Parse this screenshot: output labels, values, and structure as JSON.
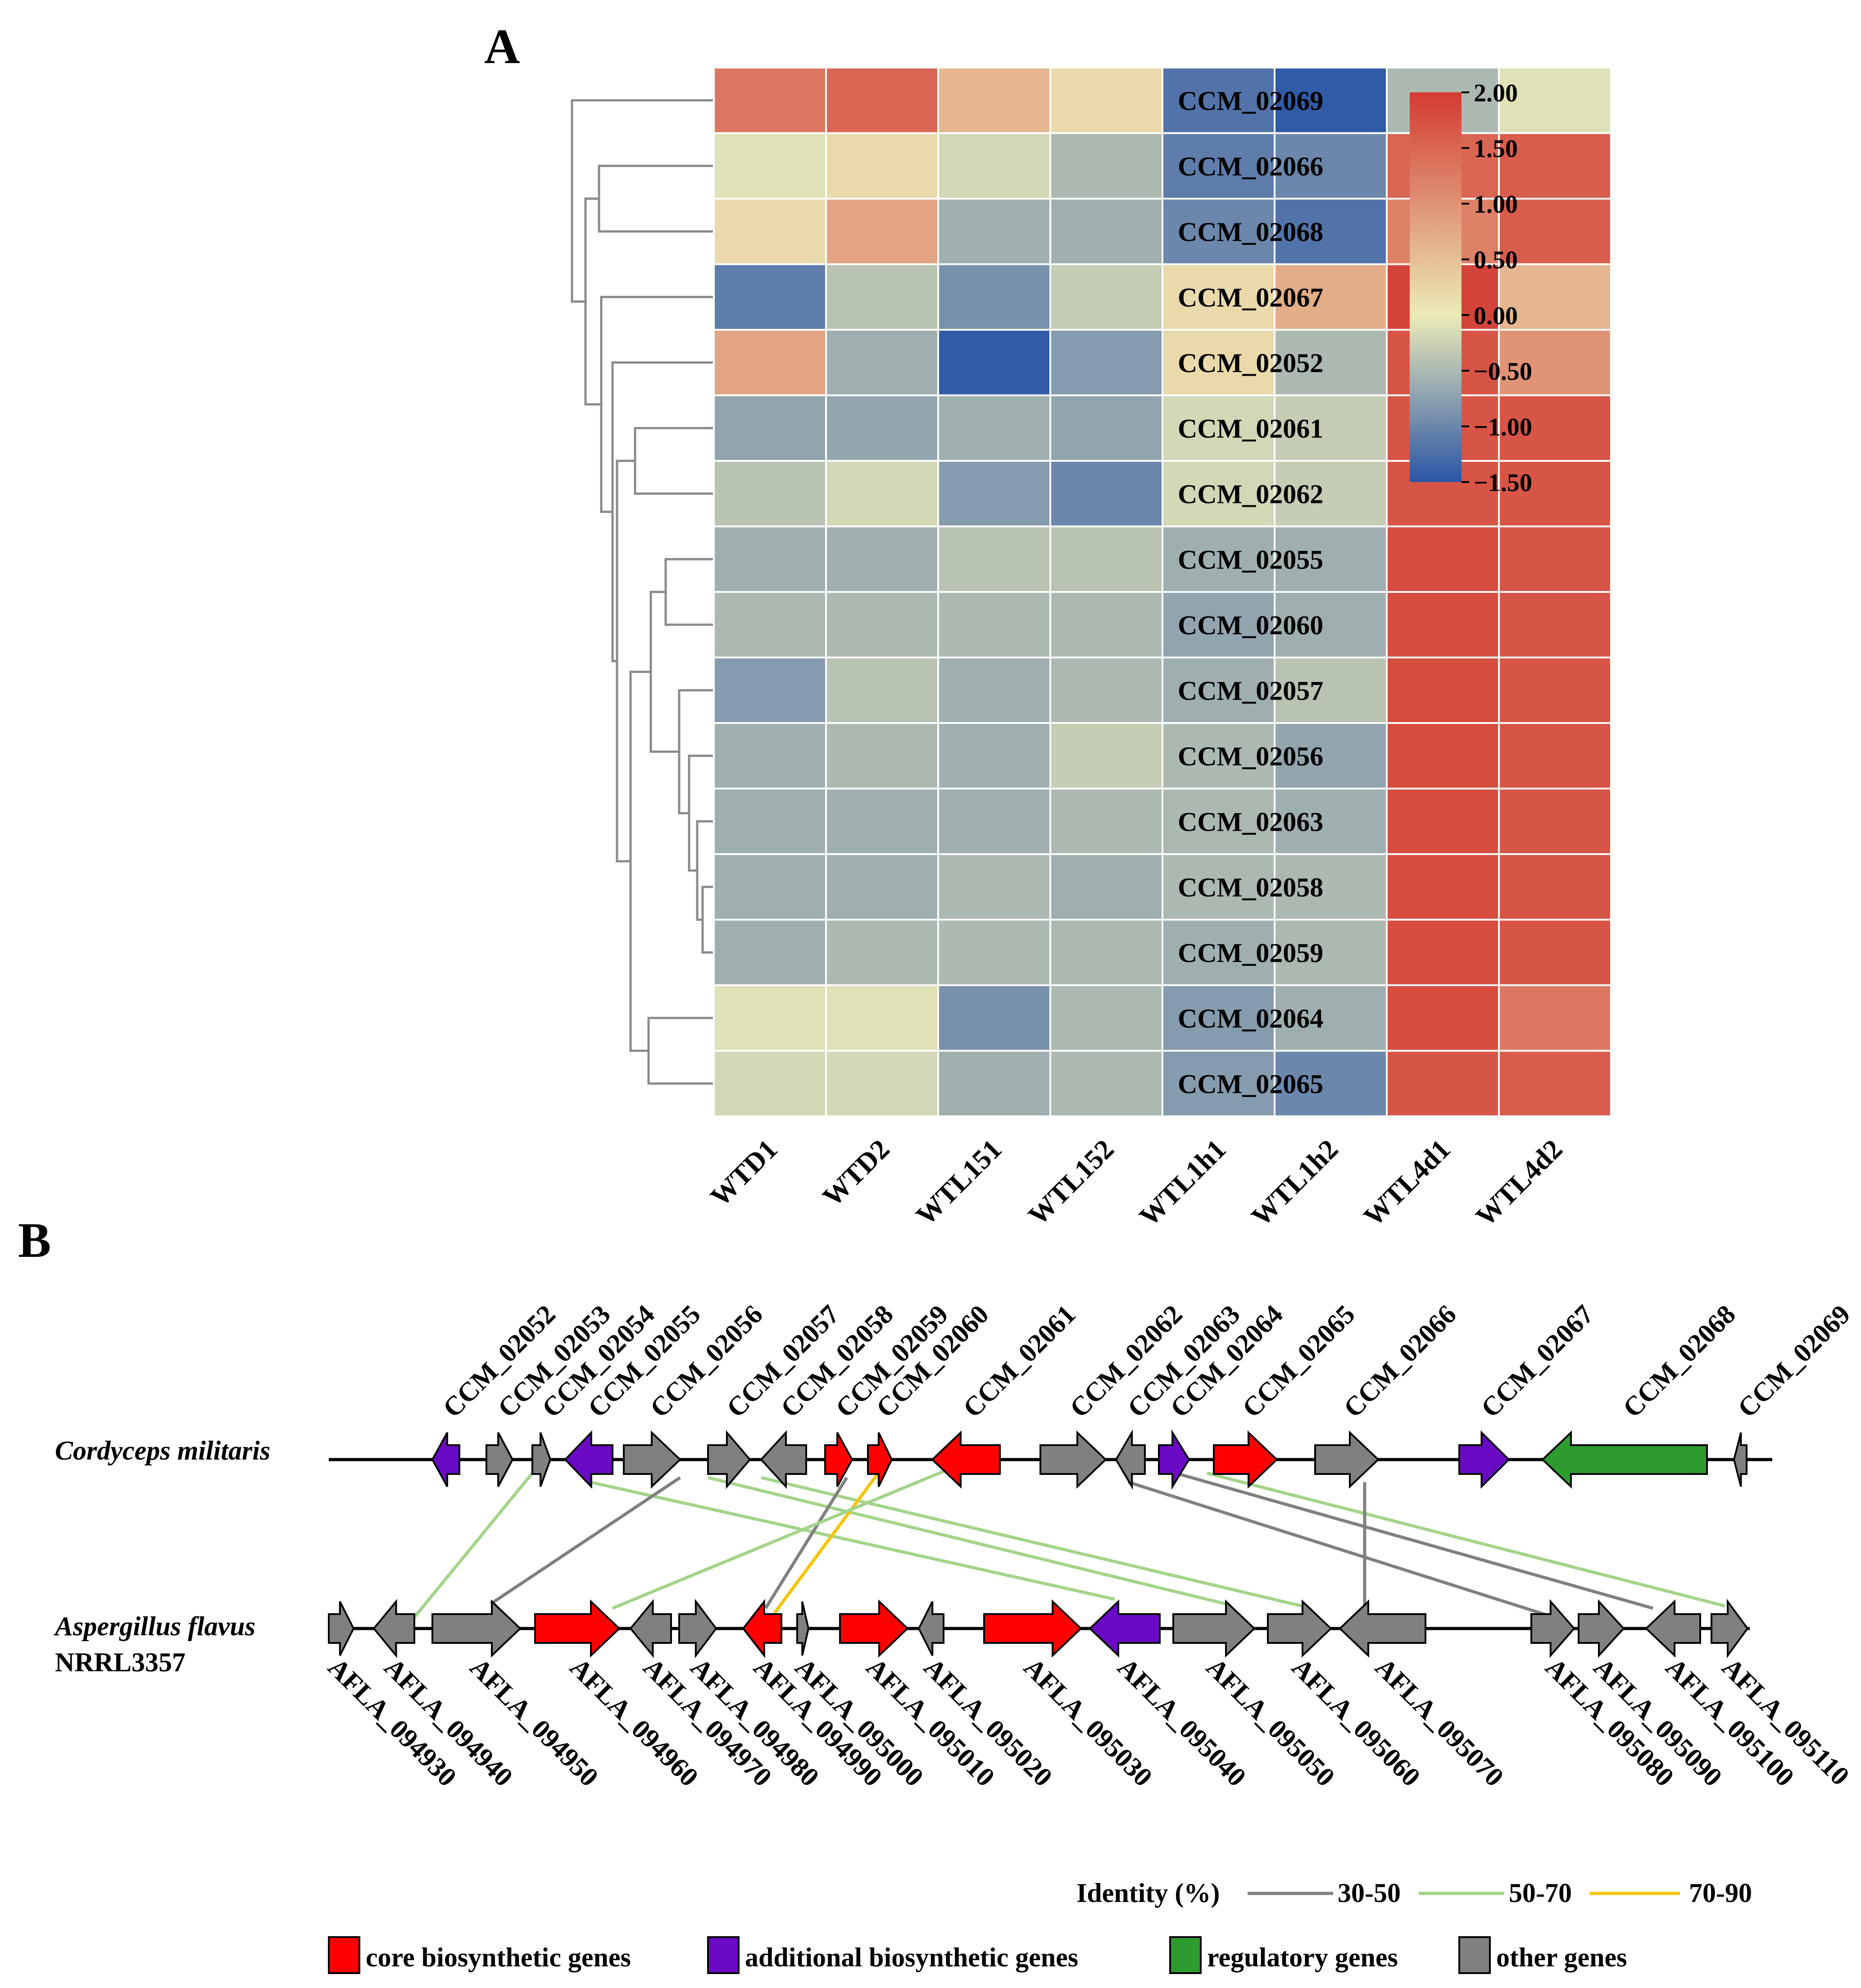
{
  "panel_a": {
    "label": "A",
    "genes": [
      "CCM_02069",
      "CCM_02066",
      "CCM_02068",
      "CCM_02067",
      "CCM_02052",
      "CCM_02061",
      "CCM_02062",
      "CCM_02055",
      "CCM_02060",
      "CCM_02057",
      "CCM_02056",
      "CCM_02063",
      "CCM_02058",
      "CCM_02059",
      "CCM_02064",
      "CCM_02065"
    ],
    "samples": [
      "WTD1",
      "WTD2",
      "WTL151",
      "WTL152",
      "WTL1h1",
      "WTL1h2",
      "WTL4d1",
      "WTL4d2"
    ],
    "values": [
      [
        1.3,
        1.5,
        0.6,
        0.2,
        -1.2,
        -1.45,
        -0.5,
        -0.1
      ],
      [
        -0.1,
        0.2,
        -0.2,
        -0.5,
        -1.1,
        -1.0,
        1.5,
        1.6
      ],
      [
        0.2,
        0.8,
        -0.6,
        -0.6,
        -1.0,
        -1.2,
        1.2,
        1.6
      ],
      [
        -1.1,
        -0.4,
        -0.9,
        -0.3,
        0.2,
        0.7,
        1.9,
        0.6
      ],
      [
        0.8,
        -0.6,
        -1.45,
        -0.8,
        0.2,
        -0.5,
        1.7,
        1.0
      ],
      [
        -0.7,
        -0.7,
        -0.6,
        -0.7,
        -0.2,
        -0.3,
        1.7,
        1.7
      ],
      [
        -0.4,
        -0.2,
        -0.8,
        -1.0,
        -0.2,
        -0.3,
        1.7,
        1.7
      ],
      [
        -0.6,
        -0.6,
        -0.4,
        -0.4,
        -0.6,
        -0.6,
        1.8,
        1.7
      ],
      [
        -0.5,
        -0.5,
        -0.5,
        -0.5,
        -0.7,
        -0.6,
        1.8,
        1.7
      ],
      [
        -0.8,
        -0.4,
        -0.6,
        -0.5,
        -0.6,
        -0.4,
        1.8,
        1.7
      ],
      [
        -0.6,
        -0.5,
        -0.6,
        -0.3,
        -0.5,
        -0.7,
        1.8,
        1.7
      ],
      [
        -0.6,
        -0.6,
        -0.6,
        -0.5,
        -0.5,
        -0.6,
        1.8,
        1.7
      ],
      [
        -0.6,
        -0.6,
        -0.5,
        -0.6,
        -0.5,
        -0.5,
        1.8,
        1.7
      ],
      [
        -0.6,
        -0.5,
        -0.5,
        -0.5,
        -0.6,
        -0.5,
        1.8,
        1.7
      ],
      [
        -0.1,
        -0.1,
        -0.9,
        -0.5,
        -0.8,
        -0.6,
        1.8,
        1.3
      ],
      [
        -0.2,
        -0.2,
        -0.6,
        -0.5,
        -0.8,
        -1.0,
        1.7,
        1.6
      ]
    ],
    "colorbar": {
      "min": -1.5,
      "max": 2.0,
      "ticks": [
        "2.00",
        "1.50",
        "1.00",
        "0.50",
        "0.00",
        "−0.50",
        "−1.00",
        "−1.50"
      ],
      "low_color": "#2b55a6",
      "mid_color": "#ecebb7",
      "high_color": "#d33a32"
    }
  },
  "panel_b": {
    "label": "B",
    "cm_species": "Cordyceps militaris",
    "af_species": "Aspergillus flavus",
    "af_strain": "NRRL3357",
    "cm_labels": [
      "CCM_02052",
      "CCM_02053",
      "CCM_02054",
      "CCM_02055",
      "CCM_02056",
      "CCM_02057",
      "CCM_02058",
      "CCM_02059",
      "CCM_02060",
      "CCM_02061",
      "CCM_02062",
      "CCM_02063",
      "CCM_02064",
      "CCM_02065",
      "CCM_02066",
      "CCM_02067",
      "CCM_02068",
      "CCM_02069"
    ],
    "af_labels": [
      "AFLA_094930",
      "AFLA_094940",
      "AFLA_094950",
      "AFLA_094960",
      "AFLA_094970",
      "AFLA_094980",
      "AFLA_094990",
      "AFLA_095000",
      "AFLA_095010",
      "AFLA_095020",
      "AFLA_095030",
      "AFLA_095040",
      "AFLA_095050",
      "AFLA_095060",
      "AFLA_095070",
      "AFLA_095080",
      "AFLA_095090",
      "AFLA_095100",
      "AFLA_095110"
    ],
    "identity_title": "Identity (%)",
    "identity": [
      {
        "label": "30-50",
        "color": "#808080"
      },
      {
        "label": "50-70",
        "color": "#a4d38a"
      },
      {
        "label": "70-90",
        "color": "#f5c400"
      }
    ],
    "categories": [
      {
        "label": "core biosynthetic genes",
        "color": "#ff0000"
      },
      {
        "label": "additional biosynthetic genes",
        "color": "#6a0ac4"
      },
      {
        "label": "regulatory genes",
        "color": "#2e9b2e"
      },
      {
        "label": "other genes",
        "color": "#808080"
      }
    ]
  }
}
